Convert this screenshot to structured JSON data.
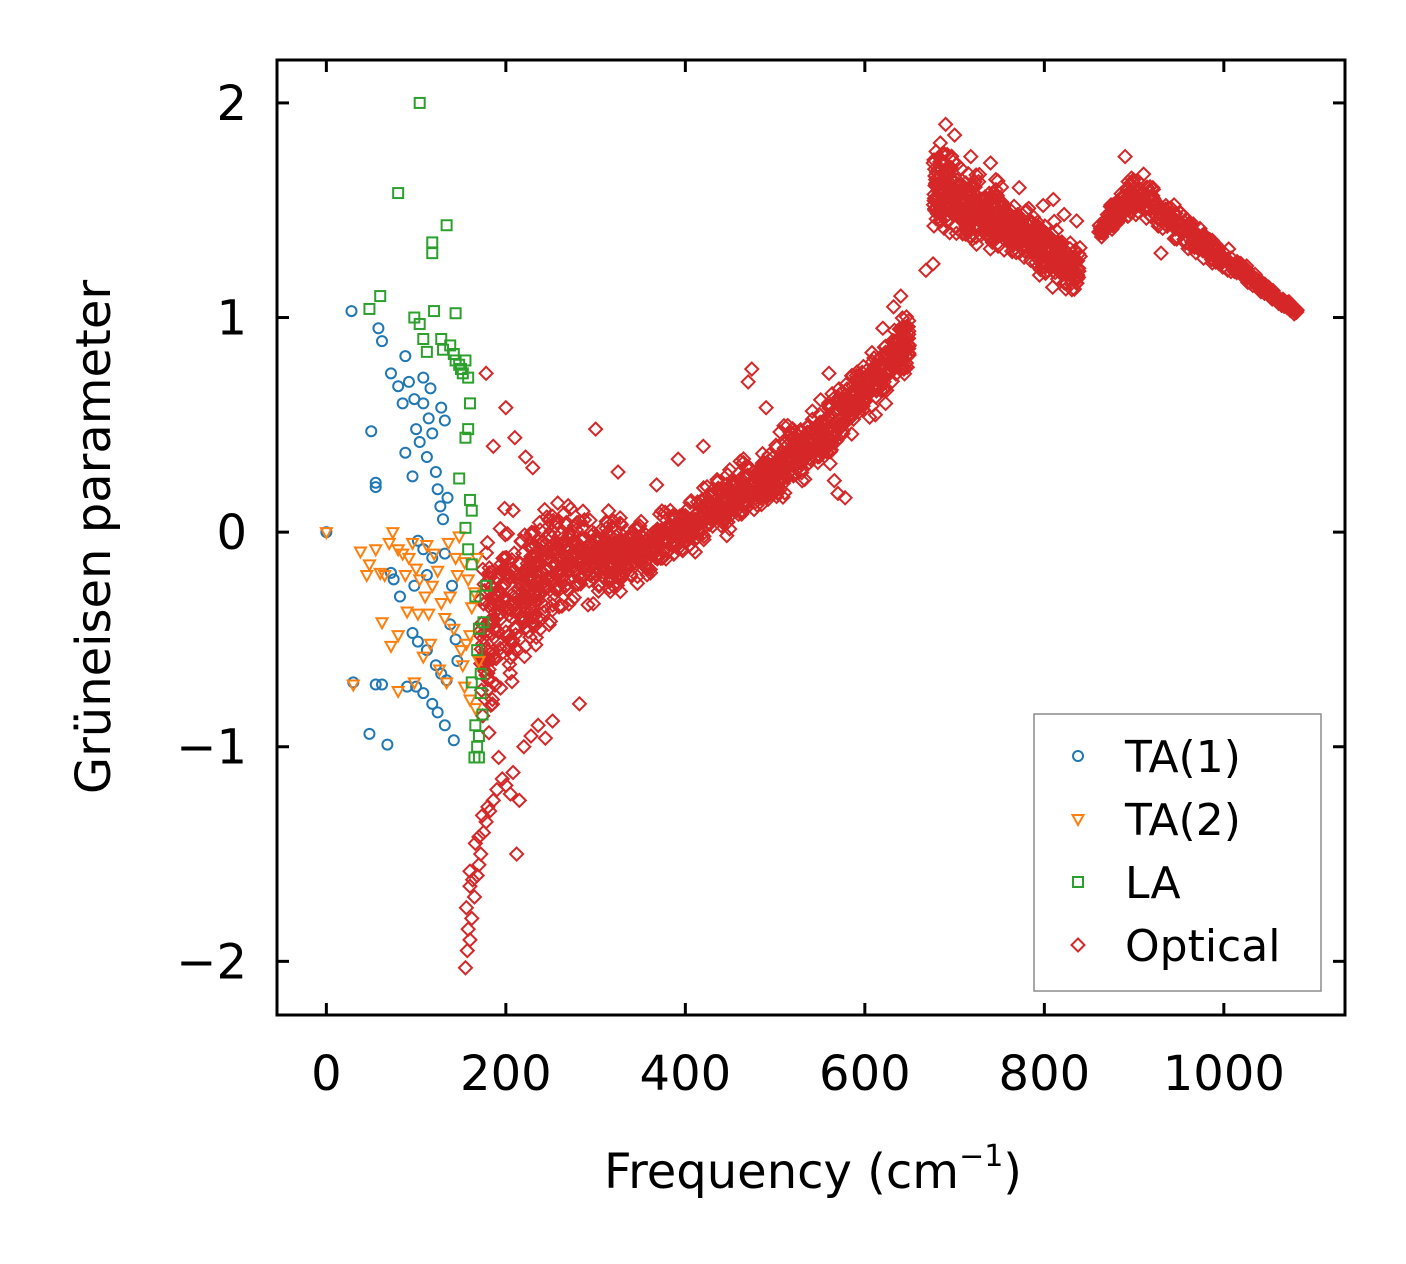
{
  "chart_data": {
    "type": "scatter",
    "title": "",
    "xlabel": "Frequency (cm",
    "xlabel_sup": "−1",
    "xlabel_close": ")",
    "ylabel": "Grüneisen parameter",
    "xlim": [
      -55,
      1135
    ],
    "ylim": [
      -2.25,
      2.2
    ],
    "xticks": [
      0,
      200,
      400,
      600,
      800,
      1000
    ],
    "xtick_labels": [
      "0",
      "200",
      "400",
      "600",
      "800",
      "1000"
    ],
    "yticks": [
      -2,
      -1,
      0,
      1,
      2
    ],
    "ytick_labels": [
      "−2",
      "−1",
      "0",
      "1",
      "2"
    ],
    "legend_position": "bottom-right",
    "series": [
      {
        "name": "TA(1)",
        "marker": "circle",
        "color": "#1f77b4",
        "points": [
          [
            0,
            0
          ],
          [
            28,
            1.03
          ],
          [
            50,
            0.47
          ],
          [
            58,
            0.95
          ],
          [
            62,
            0.89
          ],
          [
            72,
            0.74
          ],
          [
            80,
            0.68
          ],
          [
            85,
            0.6
          ],
          [
            88,
            0.82
          ],
          [
            92,
            0.7
          ],
          [
            98,
            0.62
          ],
          [
            100,
            0.48
          ],
          [
            104,
            0.42
          ],
          [
            108,
            0.6
          ],
          [
            112,
            0.35
          ],
          [
            114,
            0.53
          ],
          [
            118,
            0.46
          ],
          [
            122,
            0.28
          ],
          [
            124,
            0.2
          ],
          [
            127,
            0.12
          ],
          [
            130,
            0.06
          ],
          [
            135,
            0.16
          ],
          [
            55,
            0.23
          ],
          [
            55,
            0.21
          ],
          [
            88,
            0.37
          ],
          [
            96,
            0.26
          ],
          [
            108,
            0.72
          ],
          [
            116,
            0.67
          ],
          [
            128,
            0.58
          ],
          [
            132,
            0.52
          ],
          [
            102,
            -0.04
          ],
          [
            108,
            -0.08
          ],
          [
            112,
            -0.2
          ],
          [
            118,
            -0.12
          ],
          [
            98,
            -0.25
          ],
          [
            72,
            -0.19
          ],
          [
            75,
            -0.22
          ],
          [
            82,
            -0.3
          ],
          [
            96,
            -0.47
          ],
          [
            102,
            -0.51
          ],
          [
            112,
            -0.55
          ],
          [
            122,
            -0.62
          ],
          [
            128,
            -0.66
          ],
          [
            134,
            -0.69
          ],
          [
            138,
            -0.43
          ],
          [
            144,
            -0.5
          ],
          [
            30,
            -0.7
          ],
          [
            48,
            -0.94
          ],
          [
            55,
            -0.71
          ],
          [
            62,
            -0.71
          ],
          [
            68,
            -0.99
          ],
          [
            90,
            -0.72
          ],
          [
            100,
            -0.72
          ],
          [
            108,
            -0.75
          ],
          [
            118,
            -0.8
          ],
          [
            124,
            -0.84
          ],
          [
            132,
            -0.9
          ],
          [
            142,
            -0.97
          ],
          [
            146,
            -0.6
          ],
          [
            140,
            -0.25
          ],
          [
            132,
            -0.1
          ]
        ]
      },
      {
        "name": "TA(2)",
        "marker": "triangle-down",
        "color": "#ff7f0e",
        "points": [
          [
            0,
            0
          ],
          [
            38,
            -0.09
          ],
          [
            45,
            -0.2
          ],
          [
            48,
            -0.15
          ],
          [
            55,
            -0.08
          ],
          [
            60,
            -0.19
          ],
          [
            65,
            -0.2
          ],
          [
            70,
            -0.05
          ],
          [
            74,
            0.0
          ],
          [
            80,
            -0.08
          ],
          [
            85,
            -0.1
          ],
          [
            88,
            -0.2
          ],
          [
            92,
            -0.12
          ],
          [
            96,
            -0.05
          ],
          [
            100,
            -0.17
          ],
          [
            104,
            -0.22
          ],
          [
            110,
            -0.3
          ],
          [
            114,
            -0.38
          ],
          [
            118,
            -0.25
          ],
          [
            124,
            -0.18
          ],
          [
            128,
            -0.33
          ],
          [
            132,
            -0.4
          ],
          [
            138,
            -0.3
          ],
          [
            142,
            -0.45
          ],
          [
            146,
            -0.2
          ],
          [
            150,
            -0.55
          ],
          [
            152,
            -0.62
          ],
          [
            156,
            -0.52
          ],
          [
            160,
            -0.48
          ],
          [
            162,
            -0.35
          ],
          [
            165,
            -0.28
          ],
          [
            168,
            -0.12
          ],
          [
            170,
            -0.6
          ],
          [
            62,
            -0.42
          ],
          [
            72,
            -0.53
          ],
          [
            80,
            -0.48
          ],
          [
            90,
            -0.37
          ],
          [
            102,
            -0.38
          ],
          [
            108,
            -0.58
          ],
          [
            116,
            -0.52
          ],
          [
            126,
            -0.64
          ],
          [
            134,
            -0.7
          ],
          [
            30,
            -0.71
          ],
          [
            80,
            -0.74
          ],
          [
            98,
            -0.7
          ],
          [
            144,
            -0.12
          ],
          [
            154,
            -0.14
          ],
          [
            158,
            -0.22
          ],
          [
            112,
            -0.06
          ],
          [
            120,
            -0.1
          ],
          [
            136,
            -0.05
          ],
          [
            148,
            -0.02
          ],
          [
            166,
            -0.82
          ],
          [
            160,
            -0.78
          ],
          [
            154,
            -0.72
          ]
        ]
      },
      {
        "name": "LA",
        "marker": "square",
        "color": "#2ca02c",
        "points": [
          [
            104,
            2.0
          ],
          [
            80,
            1.58
          ],
          [
            134,
            1.43
          ],
          [
            118,
            1.35
          ],
          [
            118,
            1.3
          ],
          [
            48,
            1.04
          ],
          [
            60,
            1.1
          ],
          [
            98,
            1.0
          ],
          [
            104,
            0.97
          ],
          [
            120,
            1.03
          ],
          [
            144,
            1.02
          ],
          [
            108,
            0.9
          ],
          [
            112,
            0.84
          ],
          [
            128,
            0.9
          ],
          [
            130,
            0.85
          ],
          [
            138,
            0.87
          ],
          [
            142,
            0.83
          ],
          [
            144,
            0.8
          ],
          [
            148,
            0.78
          ],
          [
            150,
            0.76
          ],
          [
            152,
            0.74
          ],
          [
            155,
            0.8
          ],
          [
            158,
            0.72
          ],
          [
            160,
            0.6
          ],
          [
            158,
            0.48
          ],
          [
            155,
            0.44
          ],
          [
            160,
            0.15
          ],
          [
            162,
            0.1
          ],
          [
            148,
            0.25
          ],
          [
            155,
            0.02
          ],
          [
            162,
            -0.15
          ],
          [
            166,
            -0.3
          ],
          [
            170,
            -0.45
          ],
          [
            168,
            -0.55
          ],
          [
            172,
            -0.66
          ],
          [
            174,
            -0.85
          ],
          [
            170,
            -0.95
          ],
          [
            165,
            -1.05
          ],
          [
            168,
            -1.0
          ],
          [
            172,
            -0.75
          ],
          [
            175,
            -0.42
          ],
          [
            178,
            -0.25
          ],
          [
            158,
            -0.08
          ],
          [
            162,
            -0.7
          ],
          [
            166,
            -0.9
          ],
          [
            170,
            -1.05
          ]
        ]
      },
      {
        "name": "Optical",
        "marker": "diamond",
        "color": "#d62728",
        "points": []
      }
    ],
    "optical_bands": [
      {
        "x": [
          172,
          260
        ],
        "lo": [
          -1.05,
          -0.45
        ],
        "hi": [
          0.12,
          0.22
        ],
        "count": 320
      },
      {
        "x": [
          260,
          340
        ],
        "lo": [
          -0.45,
          -0.3
        ],
        "hi": [
          0.22,
          0.1
        ],
        "count": 260
      },
      {
        "x": [
          340,
          460
        ],
        "lo": [
          -0.3,
          -0.02
        ],
        "hi": [
          0.1,
          0.35
        ],
        "count": 300
      },
      {
        "x": [
          460,
          560
        ],
        "lo": [
          -0.02,
          0.28
        ],
        "hi": [
          0.35,
          0.7
        ],
        "count": 300
      },
      {
        "x": [
          560,
          650
        ],
        "lo": [
          0.28,
          0.72
        ],
        "hi": [
          0.7,
          1.05
        ],
        "count": 260
      },
      {
        "x": [
          676,
          760
        ],
        "lo": [
          1.35,
          1.2
        ],
        "hi": [
          1.88,
          1.65
        ],
        "count": 320
      },
      {
        "x": [
          760,
          840
        ],
        "lo": [
          1.2,
          1.05
        ],
        "hi": [
          1.65,
          1.4
        ],
        "count": 260
      },
      {
        "x": [
          860,
          900
        ],
        "lo": [
          1.35,
          1.45
        ],
        "hi": [
          1.45,
          1.72
        ],
        "count": 120
      },
      {
        "x": [
          900,
          1082
        ],
        "lo": [
          1.45,
          1.0
        ],
        "hi": [
          1.72,
          1.05
        ],
        "count": 340
      }
    ],
    "optical_tail": [
      [
        155,
        -2.03
      ],
      [
        157,
        -1.95
      ],
      [
        160,
        -1.9
      ],
      [
        158,
        -1.85
      ],
      [
        162,
        -1.8
      ],
      [
        156,
        -1.75
      ],
      [
        165,
        -1.7
      ],
      [
        160,
        -1.65
      ],
      [
        168,
        -1.6
      ],
      [
        170,
        -1.55
      ],
      [
        172,
        -1.5
      ],
      [
        166,
        -1.45
      ],
      [
        175,
        -1.4
      ],
      [
        178,
        -1.35
      ],
      [
        182,
        -1.3
      ],
      [
        186,
        -1.25
      ],
      [
        190,
        -1.2
      ],
      [
        196,
        -1.15
      ],
      [
        200,
        -1.18
      ],
      [
        208,
        -1.12
      ],
      [
        215,
        -1.25
      ],
      [
        212,
        -1.5
      ],
      [
        220,
        -1.0
      ],
      [
        228,
        -0.95
      ],
      [
        236,
        -0.9
      ],
      [
        244,
        -0.96
      ],
      [
        252,
        -0.88
      ],
      [
        282,
        -0.8
      ],
      [
        160,
        -1.58
      ],
      [
        163,
        -1.62
      ],
      [
        170,
        -1.42
      ],
      [
        174,
        -1.32
      ],
      [
        180,
        -1.28
      ],
      [
        192,
        -1.05
      ],
      [
        205,
        -1.22
      ],
      [
        178,
        0.74
      ],
      [
        200,
        0.58
      ],
      [
        186,
        0.4
      ],
      [
        210,
        0.44
      ],
      [
        222,
        0.35
      ],
      [
        230,
        0.3
      ],
      [
        300,
        0.48
      ],
      [
        325,
        0.28
      ],
      [
        368,
        0.22
      ],
      [
        392,
        0.34
      ],
      [
        420,
        0.4
      ],
      [
        474,
        0.76
      ],
      [
        470,
        0.7
      ],
      [
        490,
        0.58
      ],
      [
        560,
        0.74
      ],
      [
        570,
        0.18
      ],
      [
        578,
        0.16
      ],
      [
        566,
        0.24
      ],
      [
        640,
        1.1
      ],
      [
        632,
        1.05
      ],
      [
        620,
        0.95
      ],
      [
        668,
        1.22
      ],
      [
        676,
        1.25
      ],
      [
        780,
        1.5
      ],
      [
        690,
        1.9
      ],
      [
        700,
        1.85
      ],
      [
        718,
        1.75
      ],
      [
        740,
        1.72
      ],
      [
        810,
        1.55
      ],
      [
        822,
        1.48
      ],
      [
        836,
        1.45
      ],
      [
        890,
        1.75
      ],
      [
        912,
        1.5
      ],
      [
        930,
        1.3
      ]
    ]
  }
}
